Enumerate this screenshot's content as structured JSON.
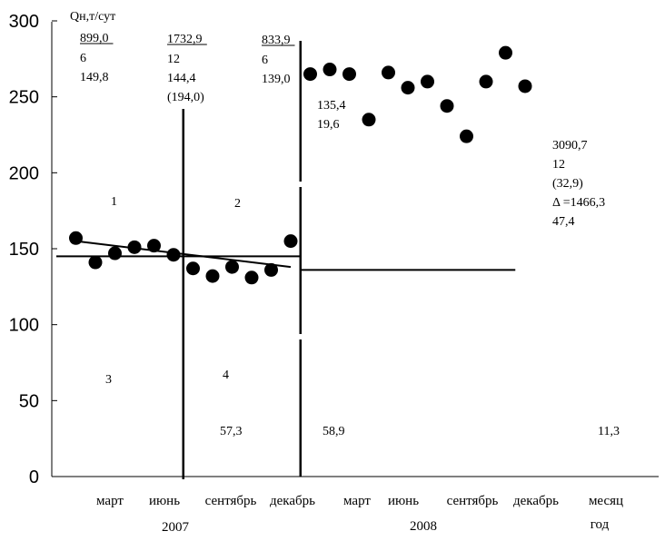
{
  "chart_data": {
    "type": "scatter",
    "ylabel": "Qн,т/сут",
    "ylim": [
      0,
      300
    ],
    "yticks": [
      "0",
      "50",
      "100",
      "150",
      "200",
      "250",
      "300"
    ],
    "xtick_labels": [
      "март",
      "июнь",
      "сентябрь",
      "декабрь",
      "март",
      "июнь",
      "сентябрь",
      "декабрь",
      "месяц"
    ],
    "year_labels": [
      "2007",
      "2008",
      "год"
    ],
    "series": [
      {
        "x": [
          1,
          2,
          3,
          4,
          5,
          6,
          7,
          8,
          9,
          10,
          11,
          12,
          13,
          14,
          15,
          16,
          17,
          18,
          19,
          20,
          21,
          22,
          23,
          24
        ],
        "y": [
          157,
          141,
          147,
          151,
          152,
          146,
          137,
          132,
          138,
          131,
          136,
          155,
          265,
          268,
          265,
          235,
          266,
          256,
          260,
          244,
          224,
          260,
          279,
          257
        ]
      }
    ],
    "lines": {
      "level_2007_segment": {
        "x": [
          0,
          12.5
        ],
        "y": [
          145,
          145
        ]
      },
      "level_2008_segment": {
        "x": [
          12.5,
          23.5
        ],
        "y": [
          136,
          136
        ]
      },
      "trend_2007": {
        "x": [
          1,
          12
        ],
        "y": [
          155,
          138
        ]
      },
      "dividers_x": [
        6.5,
        12.5
      ]
    },
    "annotations": {
      "period_1": {
        "underlined": "899,0",
        "lines": [
          "6",
          "149,8"
        ]
      },
      "period_2": {
        "underlined": "1732,9",
        "lines": [
          "12",
          "144,4",
          "(194,0)"
        ]
      },
      "period_3": {
        "underlined": "833,9",
        "lines": [
          "6",
          "139,0"
        ]
      },
      "period_4": {
        "lines": [
          "135,4",
          "19,6"
        ]
      },
      "period_5": {
        "lines": [
          "3090,7",
          "12",
          "(32,9)",
          "Δ =1466,3",
          "47,4"
        ]
      },
      "region_labels": [
        "1",
        "2",
        "3",
        "4"
      ],
      "bottom_values": [
        "57,3",
        "58,9",
        "11,3"
      ]
    }
  }
}
